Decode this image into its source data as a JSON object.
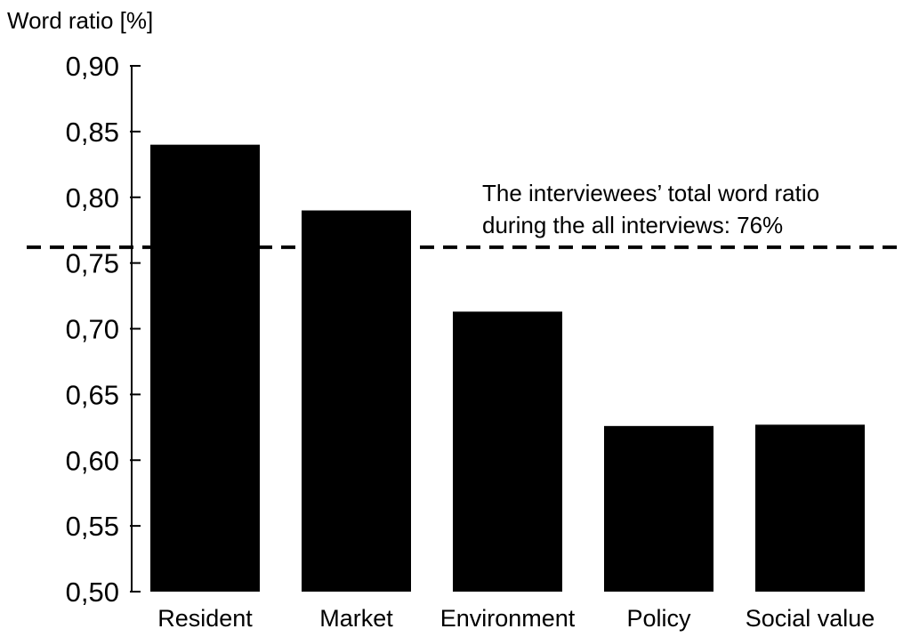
{
  "chart_data": {
    "type": "bar",
    "ylabel": "Word ratio [%]",
    "xlabel": "",
    "categories": [
      "Resident",
      "Market",
      "Environment",
      "Policy",
      "Social value"
    ],
    "values": [
      0.84,
      0.79,
      0.713,
      0.626,
      0.627
    ],
    "ylim": [
      0.5,
      0.9
    ],
    "yticks": [
      "0,50",
      "0,55",
      "0,60",
      "0,65",
      "0,70",
      "0,75",
      "0,80",
      "0,85",
      "0,90"
    ],
    "ytick_values": [
      0.5,
      0.55,
      0.6,
      0.65,
      0.7,
      0.75,
      0.8,
      0.85,
      0.9
    ],
    "reference_line": {
      "value": 0.762,
      "style": "dashed",
      "annotation": [
        "The interviewees’ total word ratio",
        "during the all interviews: 76%"
      ]
    },
    "bar_color": "#000000",
    "grid": false,
    "legend": "none"
  }
}
